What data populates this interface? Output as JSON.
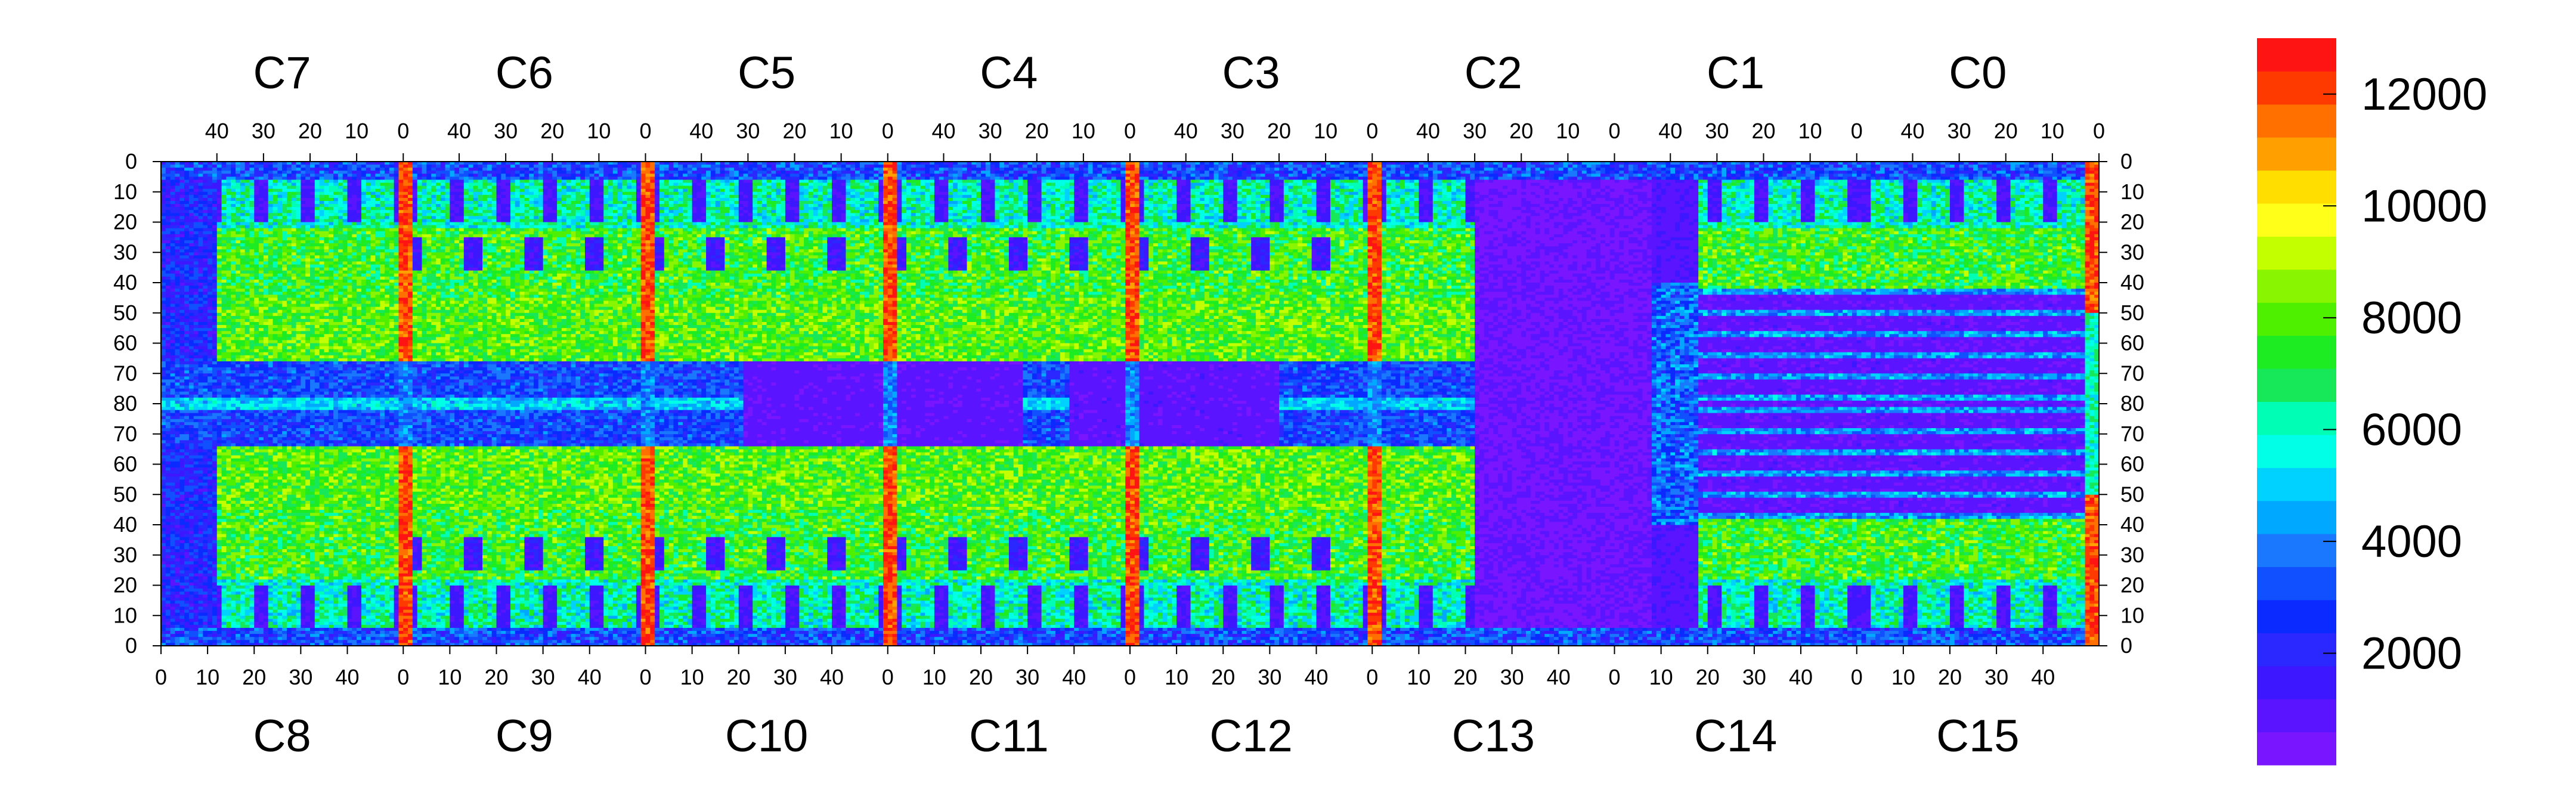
{
  "chart_data": {
    "type": "heatmap",
    "title": "",
    "top_chip_labels": [
      "C7",
      "C6",
      "C5",
      "C4",
      "C3",
      "C2",
      "C1",
      "C0"
    ],
    "bottom_chip_labels": [
      "C8",
      "C9",
      "C10",
      "C11",
      "C12",
      "C13",
      "C14",
      "C15"
    ],
    "top_axis_ticks": [
      40,
      30,
      20,
      10,
      0
    ],
    "bottom_axis_ticks": [
      0,
      10,
      20,
      30,
      40
    ],
    "chip_columns": 52,
    "left_axis_ticks": [
      0,
      10,
      20,
      30,
      40,
      50,
      60,
      70,
      80,
      70,
      60,
      50,
      40,
      30,
      20,
      10,
      0
    ],
    "right_axis_ticks": [
      0,
      10,
      20,
      30,
      40,
      50,
      60,
      70,
      80,
      70,
      60,
      50,
      40,
      30,
      20,
      10,
      0
    ],
    "rows_per_half": 80,
    "colorbar": {
      "min": 0,
      "max": 13000,
      "tick_labels": [
        "12000",
        "10000",
        "8000",
        "6000",
        "4000",
        "2000"
      ],
      "tick_values": [
        12000,
        10000,
        8000,
        6000,
        4000,
        2000
      ],
      "levels": 20,
      "colors": [
        "#7a16ff",
        "#5a14ff",
        "#3c17ff",
        "#2a28ff",
        "#0a2aff",
        "#1050ff",
        "#1a78ff",
        "#00a8ff",
        "#00d2ff",
        "#00ffe6",
        "#00ffb4",
        "#16e85a",
        "#1eec23",
        "#4ef000",
        "#8af500",
        "#c4ff00",
        "#ffff1a",
        "#ffde00",
        "#ffa000",
        "#ff7000",
        "#ff3a00",
        "#ff1414"
      ]
    },
    "approximate_regions": [
      {
        "region": "C13 right part and C14 left part (both halves)",
        "value_range": [
          0,
          1000
        ]
      },
      {
        "region": "C6–C4 / C9–C11 central rows near 80",
        "value_range": [
          500,
          3000
        ]
      },
      {
        "region": "chip boundary columns at 0 (C6|C5, C5|C4, C4|C3, C3|C2, C0 edge)",
        "value_range": [
          11000,
          13000
        ]
      },
      {
        "region": "bulk of chip pixels rows 10–60",
        "value_range": [
          5000,
          9000
        ]
      },
      {
        "region": "C14/C15 and C1/C0 striped rows 40–80",
        "value_range": [
          500,
          4000
        ]
      }
    ]
  }
}
